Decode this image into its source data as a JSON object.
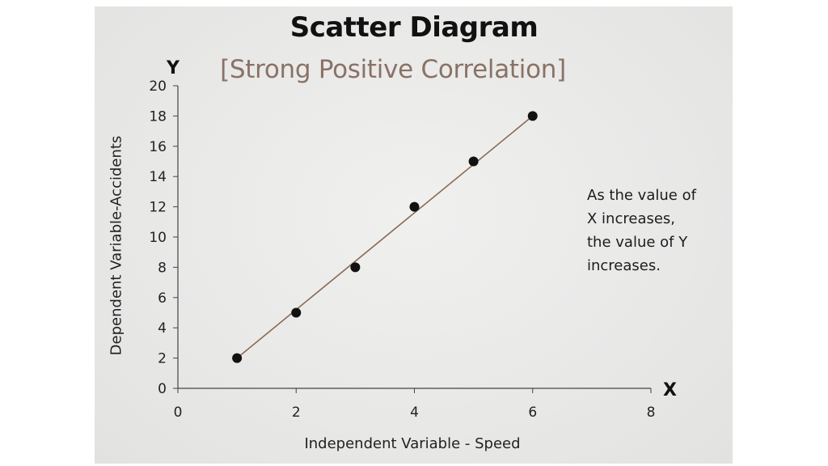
{
  "chart_data": {
    "type": "scatter",
    "title": "Scatter Diagram",
    "subtitle": "[Strong Positive Correlation]",
    "xlabel": "Independent Variable - Speed",
    "ylabel": "Dependent Variable-Accidents",
    "x_axis_letter": "X",
    "y_axis_letter": "Y",
    "xlim": [
      0,
      8
    ],
    "ylim": [
      0,
      20
    ],
    "x_ticks": [
      0,
      2,
      4,
      6,
      8
    ],
    "y_ticks": [
      0,
      2,
      4,
      6,
      8,
      10,
      12,
      14,
      16,
      18,
      20
    ],
    "grid": false,
    "points": [
      {
        "x": 1,
        "y": 2
      },
      {
        "x": 2,
        "y": 5
      },
      {
        "x": 3,
        "y": 8
      },
      {
        "x": 4,
        "y": 12
      },
      {
        "x": 5,
        "y": 15
      },
      {
        "x": 6,
        "y": 18
      }
    ],
    "trendline": {
      "from": {
        "x": 1,
        "y": 2
      },
      "to": {
        "x": 6,
        "y": 18
      }
    },
    "annotation": [
      "As the value of",
      "X increases,",
      "the value of Y",
      "increases."
    ],
    "colors": {
      "points": "#111111",
      "trendline": "#8b6a55",
      "axes": "#444444",
      "subtitle": "#8a7266"
    }
  }
}
